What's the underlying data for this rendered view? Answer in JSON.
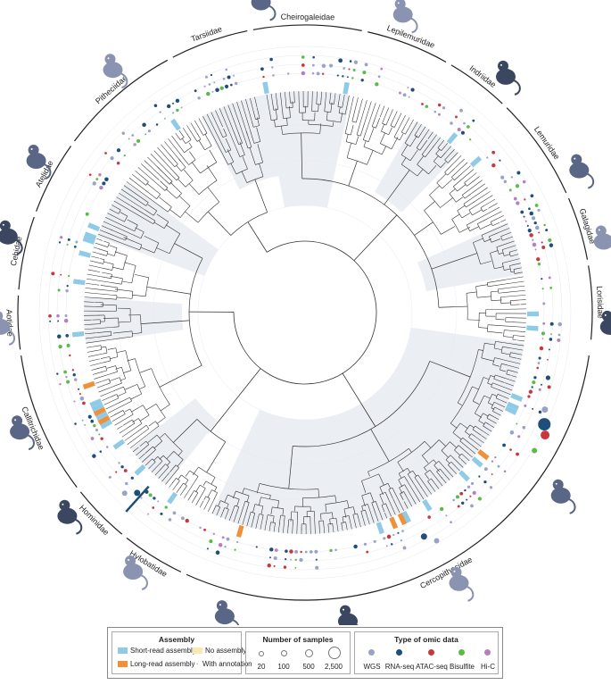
{
  "families": [
    {
      "name": "Cheirogaleidae",
      "angle": 0
    },
    {
      "name": "Lepilemuridae",
      "angle": 22
    },
    {
      "name": "Indriidae",
      "angle": 36
    },
    {
      "name": "Lemuridae",
      "angle": 55
    },
    {
      "name": "Galagidae",
      "angle": 72
    },
    {
      "name": "Lorisidae",
      "angle": 88
    },
    {
      "name": "Cercopithecidae",
      "angle": 156
    },
    {
      "name": "Hylobatidae",
      "angle": 212
    },
    {
      "name": "Hominidae",
      "angle": 226
    },
    {
      "name": "Callitrichidae",
      "angle": 246
    },
    {
      "name": "Aotidae",
      "angle": 268
    },
    {
      "name": "Cebidae",
      "angle": 282
    },
    {
      "name": "Atelidae",
      "angle": 298
    },
    {
      "name": "Pitheciidae",
      "angle": 318
    },
    {
      "name": "Tarsiidae",
      "angle": 340
    }
  ],
  "legend": {
    "assembly": {
      "title": "Assembly",
      "short_read": "Short-read assembly",
      "long_read": "Long-read assembly",
      "no_assembly": "No assembly",
      "with_annotation": "With annotation"
    },
    "samples": {
      "title": "Number of samples",
      "labels": [
        "20",
        "100",
        "500",
        "2,500"
      ]
    },
    "omic": {
      "title": "Type of omic data",
      "types": [
        "WGS",
        "RNA-seq",
        "ATAC-seq",
        "Bisulfite",
        "Hi-C"
      ]
    }
  },
  "colors": {
    "no_assembly": "#fbe8b0",
    "short_read": "#8fcbe6",
    "long_read": "#f0913a",
    "wgs": "#9aa3c7",
    "rna_seq": "#1f4e7a",
    "atac_seq": "#c9373a",
    "bisulfite": "#5cba47",
    "hic": "#b57fc1",
    "clade_shade": "#e4e8ef",
    "tree": "#333333",
    "animal": "#3b4660"
  }
}
